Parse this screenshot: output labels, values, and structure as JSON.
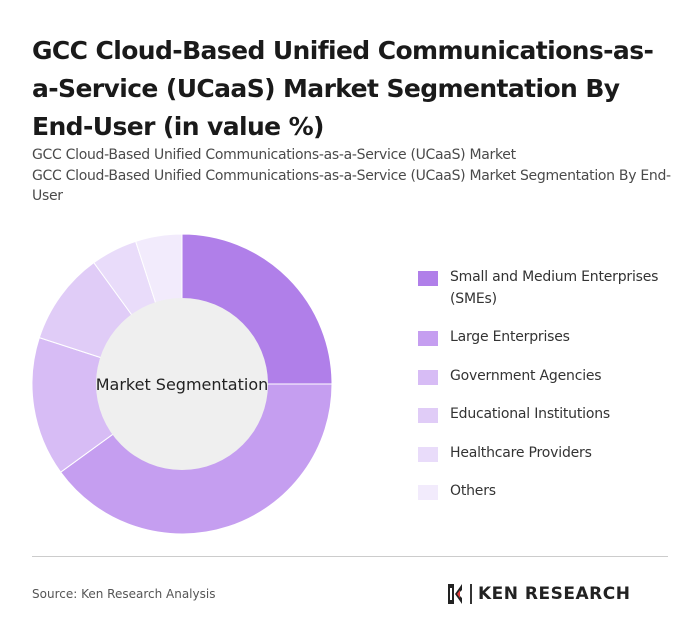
{
  "header": {
    "title": "GCC Cloud-Based Unified Communications-as-a-Service (UCaaS) Market Segmentation By End-User (in value %)",
    "subtitle_line1": "GCC Cloud-Based Unified Communications-as-a-Service (UCaaS) Market",
    "subtitle_line2": "GCC Cloud-Based Unified Communications-as-a-Service (UCaaS) Market Segmentation By End-User"
  },
  "chart_data": {
    "type": "pie",
    "variant": "donut",
    "center_label": "Market Segmentation",
    "categories": [
      "Small and Medium Enterprises (SMEs)",
      "Large Enterprises",
      "Government Agencies",
      "Educational Institutions",
      "Healthcare Providers",
      "Others"
    ],
    "values": [
      25,
      40,
      15,
      10,
      5,
      5
    ],
    "colors": [
      "#b07fe9",
      "#c59ef0",
      "#d7bcf5",
      "#e0ccf7",
      "#e9dcfa",
      "#f2ebfc"
    ],
    "legend_position": "right"
  },
  "footer": {
    "source": "Source: Ken Research Analysis",
    "brand": "KEN RESEARCH",
    "brand_icon": "ken-research-logo-icon"
  }
}
